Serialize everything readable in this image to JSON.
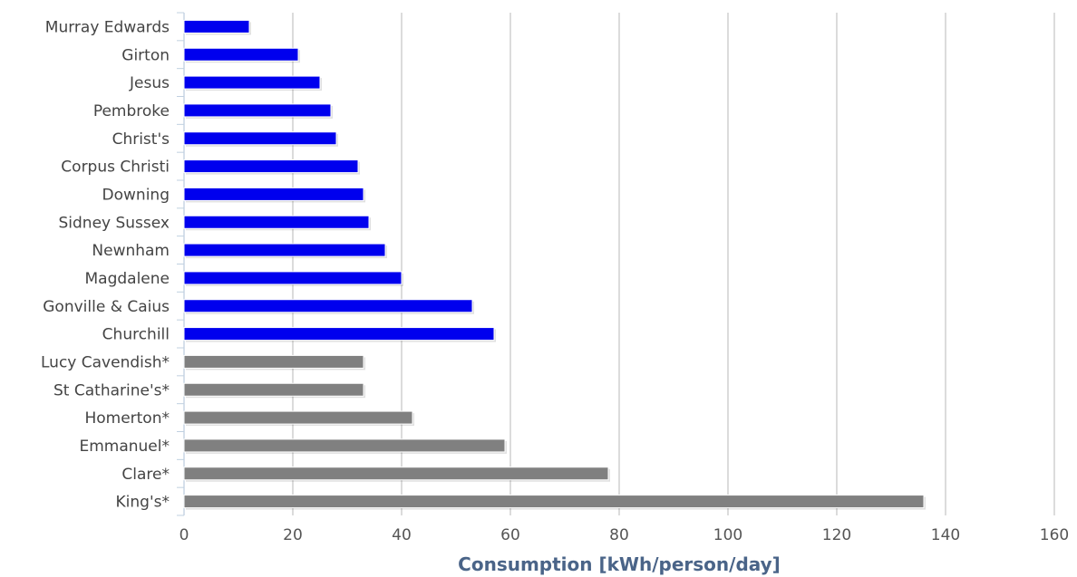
{
  "chart_data": {
    "type": "bar",
    "orientation": "horizontal",
    "title": "",
    "xlabel": "Consumption [kWh/person/day]",
    "ylabel": "",
    "xlim": [
      0,
      160
    ],
    "xticks": [
      0,
      20,
      40,
      60,
      80,
      100,
      120,
      140,
      160
    ],
    "grid": true,
    "categories": [
      "Murray Edwards",
      "Girton",
      "Jesus",
      "Pembroke",
      "Christ's",
      "Corpus Christi",
      "Downing",
      "Sidney Sussex",
      "Newnham",
      "Magdalene",
      "Gonville & Caius",
      "Churchill",
      "Lucy Cavendish*",
      "St Catharine's*",
      "Homerton*",
      "Emmanuel*",
      "Clare*",
      "King's*"
    ],
    "values": [
      12,
      21,
      25,
      27,
      28,
      32,
      33,
      34,
      37,
      40,
      53,
      57,
      33,
      33,
      42,
      59,
      78,
      136
    ],
    "bar_colors": [
      "#0000ee",
      "#0000ee",
      "#0000ee",
      "#0000ee",
      "#0000ee",
      "#0000ee",
      "#0000ee",
      "#0000ee",
      "#0000ee",
      "#0000ee",
      "#0000ee",
      "#0000ee",
      "#808080",
      "#808080",
      "#808080",
      "#808080",
      "#808080",
      "#808080"
    ],
    "colors": {
      "estimated": "#808080",
      "measured": "#0000ee"
    }
  }
}
